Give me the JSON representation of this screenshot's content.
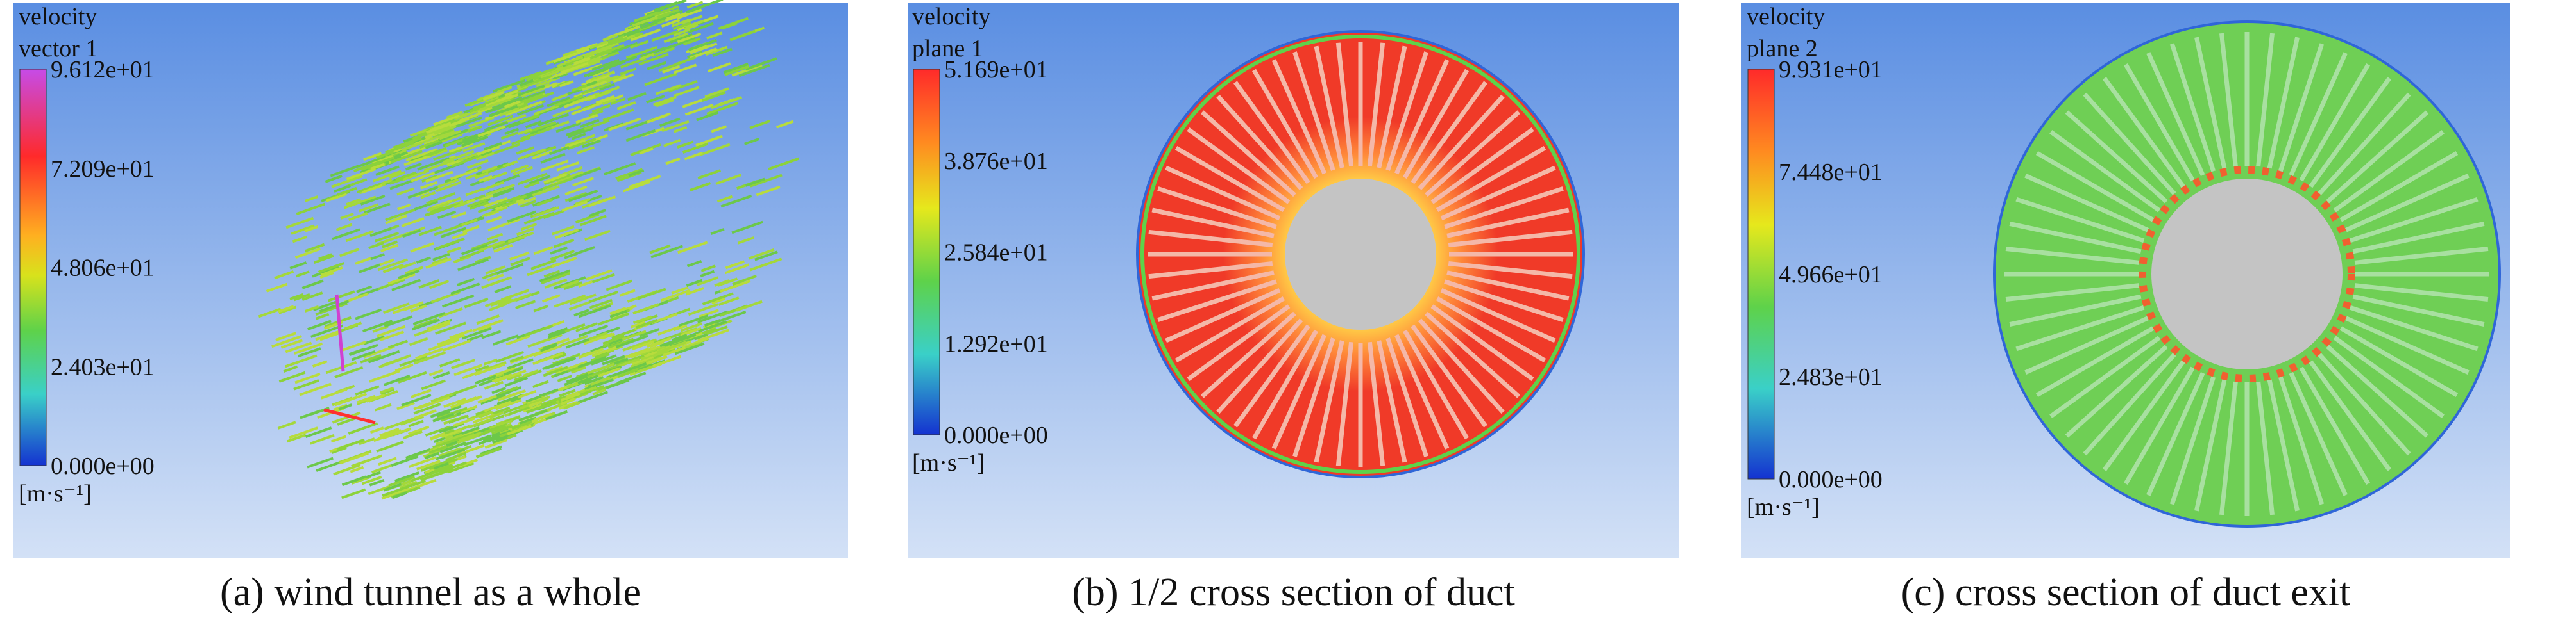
{
  "panels": [
    {
      "title": [
        "velocity",
        "vector 1"
      ],
      "ticks": [
        "9.612e+01",
        "7.209e+01",
        "4.806e+01",
        "2.403e+01",
        "0.000e+00"
      ],
      "unit": "[m·s⁻¹]",
      "caption": "(a) wind tunnel as a whole"
    },
    {
      "title": [
        "velocity",
        "plane 1"
      ],
      "ticks": [
        "5.169e+01",
        "3.876e+01",
        "2.584e+01",
        "1.292e+01",
        "0.000e+00"
      ],
      "unit": "[m·s⁻¹]",
      "caption": "(b) 1/2 cross section of duct"
    },
    {
      "title": [
        "velocity",
        "plane 2"
      ],
      "ticks": [
        "9.931e+01",
        "7.448e+01",
        "4.966e+01",
        "2.483e+01",
        "0.000e+00"
      ],
      "unit": "[m·s⁻¹]",
      "caption": "(c) cross section of duct exit"
    }
  ]
}
